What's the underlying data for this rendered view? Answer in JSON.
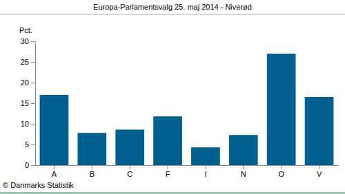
{
  "chart_data": {
    "type": "bar",
    "title": "Europa-Parlamentsvalg 25. maj 2014 - Niverød",
    "y_label": "Pct.",
    "annotations": [
      "© Danmarks Statistik"
    ],
    "categories": [
      "A",
      "B",
      "C",
      "F",
      "I",
      "N",
      "O",
      "V"
    ],
    "values": [
      17.0,
      7.8,
      8.6,
      11.8,
      4.3,
      7.3,
      27.0,
      16.5
    ],
    "color": "#00608f",
    "ylim": [
      0,
      30
    ],
    "yticks": [
      0,
      5,
      10,
      15,
      20,
      25,
      30
    ],
    "grid": false
  }
}
